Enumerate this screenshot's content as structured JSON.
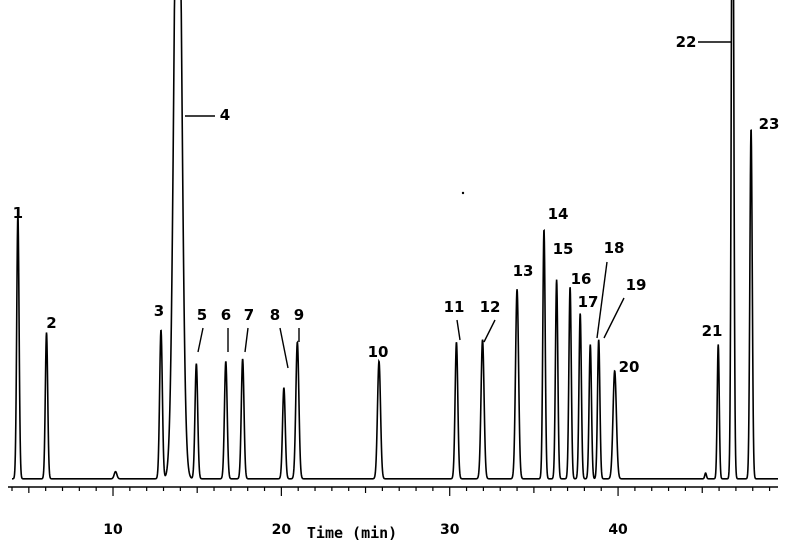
{
  "chart_data": {
    "type": "line",
    "title": "",
    "xlabel": "Time (min)",
    "ylabel": "",
    "xlim": [
      4.0,
      49.5
    ],
    "ylim": [
      0,
      100
    ],
    "grid": false,
    "legend": "none",
    "x_ticks": [
      10,
      20,
      30,
      40
    ],
    "line_color": "#000000",
    "baseline": 1.5,
    "peaks": [
      {
        "label": "1",
        "rt": 4.35,
        "height": 55.0,
        "width": 0.07
      },
      {
        "label": "2",
        "rt": 6.05,
        "height": 30.5,
        "width": 0.07
      },
      {
        "label": "",
        "rt": 10.15,
        "height": 1.5,
        "width": 0.08
      },
      {
        "label": "3",
        "rt": 12.85,
        "height": 31.0,
        "width": 0.08
      },
      {
        "label": "4",
        "rt": 13.85,
        "height": 150.0,
        "width": 0.22
      },
      {
        "label": "5",
        "rt": 14.95,
        "height": 24.0,
        "width": 0.08
      },
      {
        "label": "6",
        "rt": 16.7,
        "height": 24.5,
        "width": 0.08
      },
      {
        "label": "7",
        "rt": 17.7,
        "height": 25.0,
        "width": 0.08
      },
      {
        "label": "8",
        "rt": 20.15,
        "height": 19.0,
        "width": 0.08
      },
      {
        "label": "9",
        "rt": 20.95,
        "height": 28.5,
        "width": 0.09
      },
      {
        "label": "10",
        "rt": 25.8,
        "height": 24.5,
        "width": 0.09
      },
      {
        "label": "11",
        "rt": 30.4,
        "height": 28.5,
        "width": 0.08
      },
      {
        "label": "12",
        "rt": 31.95,
        "height": 29.0,
        "width": 0.09
      },
      {
        "label": "13",
        "rt": 34.0,
        "height": 39.5,
        "width": 0.09
      },
      {
        "label": "14",
        "rt": 35.6,
        "height": 52.0,
        "width": 0.07
      },
      {
        "label": "15",
        "rt": 36.35,
        "height": 41.5,
        "width": 0.07
      },
      {
        "label": "16",
        "rt": 37.15,
        "height": 40.0,
        "width": 0.07
      },
      {
        "label": "17",
        "rt": 37.75,
        "height": 34.5,
        "width": 0.07
      },
      {
        "label": "18",
        "rt": 38.35,
        "height": 28.0,
        "width": 0.07
      },
      {
        "label": "19",
        "rt": 38.85,
        "height": 29.0,
        "width": 0.07
      },
      {
        "label": "20",
        "rt": 39.8,
        "height": 22.5,
        "width": 0.1
      },
      {
        "label": "",
        "rt": 45.2,
        "height": 1.2,
        "width": 0.05
      },
      {
        "label": "21",
        "rt": 45.95,
        "height": 28.0,
        "width": 0.06
      },
      {
        "label": "22",
        "rt": 46.8,
        "height": 150.0,
        "width": 0.07
      },
      {
        "label": "23",
        "rt": 47.9,
        "height": 73.0,
        "width": 0.07
      }
    ]
  }
}
